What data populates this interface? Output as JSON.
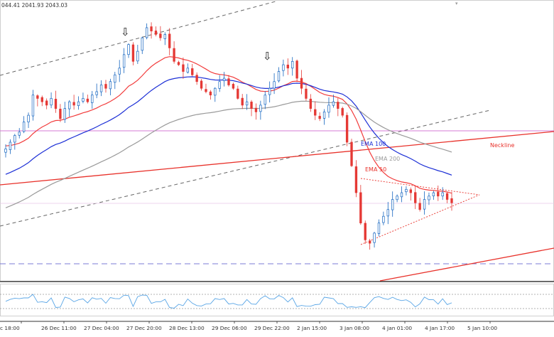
{
  "header": {
    "ohlc_text": "044.41 2041.93 2043.03"
  },
  "colors": {
    "bull_candle": "#1565c0",
    "bear_candle": "#e53935",
    "ema50": "#f23c3c",
    "ema100": "#1c2fd6",
    "ema200": "#9a9a9a",
    "trendline": "#e8312a",
    "channel": "#666666",
    "resistance": "#d060d0",
    "support_dash": "#7b7bd6",
    "rsi_line": "#5aa6e6"
  },
  "chart_data": {
    "type": "candlestick",
    "title": "",
    "xlabel": "",
    "ylabel": "",
    "x_ticks": [
      "c 18:00",
      "26 Dec 11:00",
      "27 Dec 04:00",
      "27 Dec 20:00",
      "28 Dec 13:00",
      "29 Dec 06:00",
      "29 Dec 22:00",
      "2 Jan 15:00",
      "3 Jan 08:00",
      "4 Jan 01:00",
      "4 Jan 17:00",
      "5 Jan 10:00"
    ],
    "ylim": [
      2012,
      2088
    ],
    "candles_close": [
      2048,
      2050,
      2052,
      2053,
      2056,
      2058,
      2064,
      2063,
      2062,
      2061,
      2063,
      2060,
      2057,
      2060,
      2062,
      2061,
      2062,
      2063,
      2062,
      2064,
      2065,
      2067,
      2066,
      2068,
      2070,
      2072,
      2076,
      2079,
      2074,
      2077,
      2081,
      2084,
      2083,
      2082,
      2081,
      2082,
      2078,
      2074,
      2073,
      2071,
      2072,
      2070,
      2068,
      2066,
      2065,
      2064,
      2066,
      2068,
      2069,
      2067,
      2066,
      2063,
      2061,
      2062,
      2060,
      2059,
      2061,
      2064,
      2066,
      2068,
      2071,
      2073,
      2072,
      2074,
      2069,
      2066,
      2063,
      2060,
      2058,
      2057,
      2059,
      2061,
      2062,
      2060,
      2058,
      2050,
      2043,
      2035,
      2026,
      2021,
      2020,
      2023,
      2026,
      2028,
      2030,
      2033,
      2034,
      2035,
      2036,
      2035,
      2032,
      2030,
      2033,
      2034,
      2035,
      2034,
      2035,
      2033,
      2032
    ],
    "indicators": [
      {
        "name": "EMA 100",
        "label": "EMA 100"
      },
      {
        "name": "EMA 200",
        "label": "EMA 200"
      },
      {
        "name": "EMA 50",
        "label": "EMA 50"
      }
    ],
    "annotations": [
      {
        "text": "Neckline"
      },
      {
        "text": "EMA 100"
      },
      {
        "text": "EMA 200"
      },
      {
        "text": "EMA 50"
      }
    ],
    "oscillator": {
      "name": "RSI",
      "levels": [
        30,
        70
      ]
    },
    "grid": false
  }
}
